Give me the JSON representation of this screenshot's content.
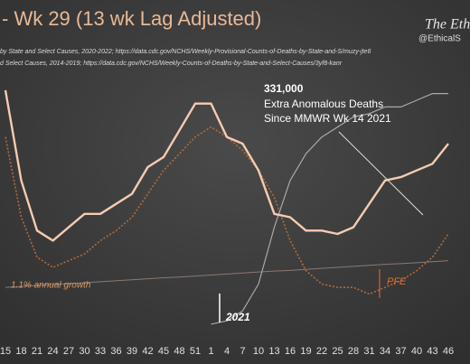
{
  "chart_data": {
    "type": "line",
    "title": "- Wk 29 (13 wk Lag Adjusted)",
    "brand": "The Ethi",
    "handle": "@EthicalS",
    "sources": [
      "by State and Select Causes, 2020-2022; https://data.cdc.gov/NCHS/Weekly-Provisional-Counts-of-Deaths-by-State-and-S/muzy-jte6",
      "d Select Causes, 2014-2019; https://data.cdc.gov/NCHS/Weekly-Counts-of-Deaths-by-State-and-Select-Causes/3yf8-kanr"
    ],
    "annotations": {
      "total": "331,000",
      "line1": "Extra Anomalous Deaths",
      "line2": "Since MMWR Wk 14 2021",
      "growth": "1.1% annual growth",
      "pfe": "PFE",
      "year": "2021"
    },
    "categories": [
      "15",
      "18",
      "21",
      "24",
      "27",
      "30",
      "33",
      "36",
      "39",
      "42",
      "45",
      "48",
      "51",
      "1",
      "4",
      "7",
      "10",
      "13",
      "16",
      "19",
      "22",
      "25",
      "28",
      "31",
      "34",
      "37",
      "40",
      "43",
      "46"
    ],
    "ylim": [
      0,
      100
    ],
    "series": [
      {
        "color": "#b36a3c",
        "dash": true,
        "width": 1.6,
        "values": [
          59,
          35,
          23,
          20,
          22,
          24,
          28,
          31,
          35,
          42,
          49,
          54,
          59,
          62,
          59,
          55,
          49,
          41,
          28,
          19,
          15,
          14,
          14,
          12,
          14,
          16,
          19,
          23,
          30
        ]
      },
      {
        "color": "#8a7a70",
        "dash": false,
        "width": 1,
        "values": [
          14.0,
          14.3,
          14.6,
          14.9,
          15.1,
          15.4,
          15.7,
          16.0,
          16.3,
          16.6,
          16.9,
          17.1,
          17.4,
          17.7,
          18.0,
          18.3,
          18.6,
          18.9,
          19.1,
          19.4,
          19.7,
          20.0,
          20.3,
          20.6,
          20.9,
          21.1,
          21.4,
          21.7,
          22.0
        ]
      },
      {
        "color": "#a9a9a9",
        "dash": false,
        "width": 1.2,
        "values": [
          null,
          null,
          null,
          null,
          null,
          null,
          null,
          null,
          null,
          null,
          null,
          null,
          null,
          3,
          4,
          7,
          15,
          32,
          46,
          54,
          59,
          62,
          65,
          66,
          68,
          68,
          70,
          72,
          72
        ]
      },
      {
        "color": "#f6cbb0",
        "dash": false,
        "width": 2.4,
        "values": [
          73,
          46,
          31,
          28,
          32,
          36,
          36,
          39,
          42,
          50,
          53,
          61,
          69,
          69,
          59,
          57,
          49,
          36,
          35,
          31,
          31,
          30,
          32,
          39,
          46,
          47,
          49,
          51,
          57
        ]
      }
    ]
  }
}
